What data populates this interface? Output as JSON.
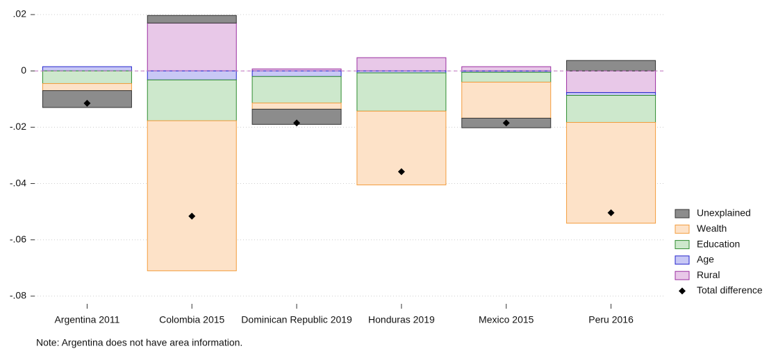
{
  "chart_data": {
    "type": "stacked_decomposition",
    "categories": [
      "Argentina 2011",
      "Colombia 2015",
      "Dominican Republic 2019",
      "Honduras 2019",
      "Mexico 2015",
      "Peru 2016"
    ],
    "series": [
      {
        "name": "Rural",
        "color": "#e8c8e8",
        "edge_color": "#9a2ea0",
        "values": [
          null,
          0.017,
          0.0007,
          0.0047,
          0.0015,
          -0.0077
        ]
      },
      {
        "name": "Age",
        "color": "#c8c8f5",
        "edge_color": "#2222cc",
        "values": [
          0.0015,
          -0.0032,
          -0.002,
          -0.0007,
          -0.0005,
          -0.001
        ]
      },
      {
        "name": "Education",
        "color": "#cde8cc",
        "edge_color": "#2e8b2e",
        "values": [
          -0.0045,
          -0.0145,
          -0.0094,
          -0.0136,
          -0.0035,
          -0.0096
        ]
      },
      {
        "name": "Wealth",
        "color": "#fde2c8",
        "edge_color": "#f39c3c",
        "values": [
          -0.0025,
          -0.0533,
          -0.0022,
          -0.0262,
          -0.0128,
          -0.0358
        ]
      },
      {
        "name": "Unexplained",
        "color": "#8c8c8c",
        "edge_color": "#333333",
        "values": [
          -0.006,
          0.0027,
          -0.0054,
          0,
          -0.0034,
          0.0037
        ]
      }
    ],
    "total": {
      "name": "Total difference",
      "color": "#000000",
      "values": [
        -0.0115,
        -0.0516,
        -0.0185,
        -0.0358,
        -0.0185,
        -0.0504
      ]
    },
    "ylim": [
      -0.0815,
      0.0205
    ],
    "yticks": [
      {
        "value": 0.02,
        "label": ".02"
      },
      0,
      {
        "value": -0.02,
        "label": "-.02"
      },
      {
        "value": -0.04,
        "label": "-.04"
      },
      {
        "value": -0.06,
        "label": "-.06"
      },
      {
        "value": -0.08,
        "label": "-.08"
      }
    ],
    "grid": true,
    "zero_line": true,
    "legend": "right",
    "note": "Note: Argentina does not have area information."
  }
}
